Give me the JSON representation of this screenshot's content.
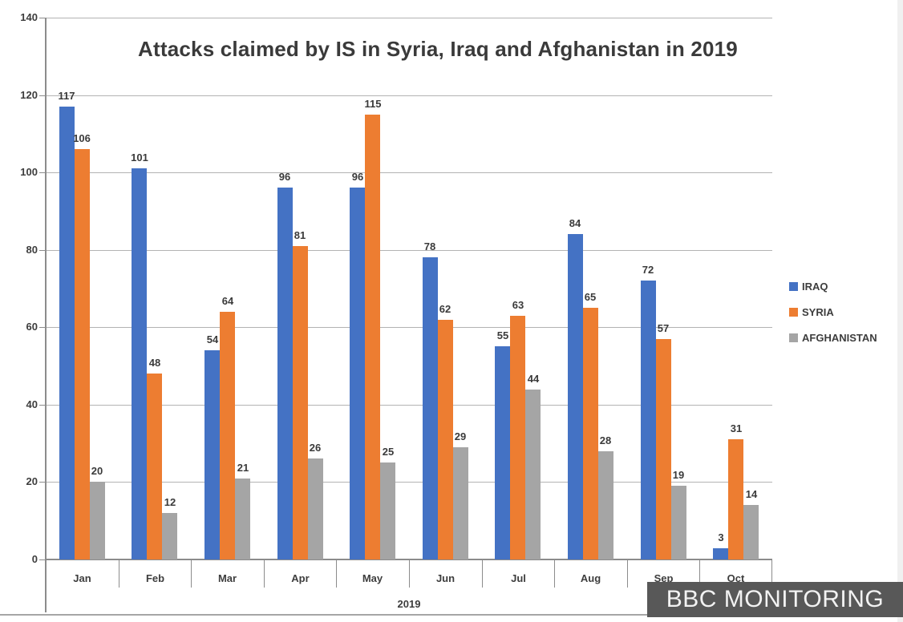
{
  "chart_data": {
    "type": "bar",
    "title": "Attacks claimed by IS in Syria, Iraq and Afghanistan in 2019",
    "categories": [
      "Jan",
      "Feb",
      "Mar",
      "Apr",
      "May",
      "Jun",
      "Jul",
      "Aug",
      "Sep",
      "Oct"
    ],
    "series": [
      {
        "name": "IRAQ",
        "color": "#4472C4",
        "values": [
          117,
          101,
          54,
          96,
          96,
          78,
          55,
          84,
          72,
          3
        ]
      },
      {
        "name": "SYRIA",
        "color": "#ED7D31",
        "values": [
          106,
          48,
          64,
          81,
          115,
          62,
          63,
          65,
          57,
          31
        ]
      },
      {
        "name": "AFGHANISTAN",
        "color": "#A5A5A5",
        "values": [
          20,
          12,
          21,
          26,
          25,
          29,
          44,
          28,
          19,
          14
        ]
      }
    ],
    "xlabel": "2019",
    "ylabel": "",
    "ylim": [
      0,
      140
    ],
    "ytick_step": 20,
    "grid": true,
    "legend_position": "right",
    "data_labels": true
  },
  "watermark": {
    "text": "BBC MONITORING",
    "bg": "#585858",
    "fg": "#F2F2F2"
  }
}
